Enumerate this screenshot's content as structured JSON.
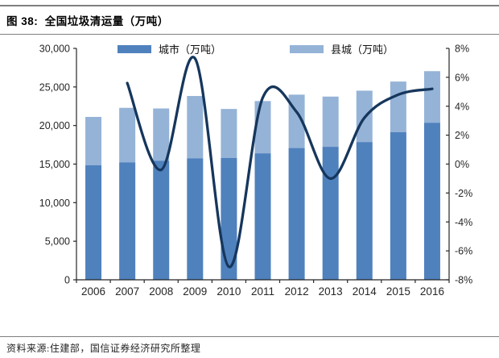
{
  "header": {
    "title": "图 38:  全国垃圾清运量（万吨）"
  },
  "footer": {
    "source": "资料来源:住建部，国信证券经济研究所整理"
  },
  "colors": {
    "city_bar": "#4F81BD",
    "county_bar": "#95B3D7",
    "growth_line": "#16365C",
    "axis": "#262626",
    "tick_text": "#262626",
    "rule": "#7F7F7F"
  },
  "chart_data": {
    "type": "bar",
    "subtype": "stacked column + smoothed line on secondary axis",
    "title": "全国垃圾清运量（万吨）",
    "categories": [
      "2006",
      "2007",
      "2008",
      "2009",
      "2010",
      "2011",
      "2012",
      "2013",
      "2014",
      "2015",
      "2016"
    ],
    "series": [
      {
        "name": "城市（万吨）",
        "type": "bar",
        "axis": "left",
        "color": "#4F81BD",
        "values": [
          14841,
          15215,
          15438,
          15734,
          15805,
          16395,
          17081,
          17239,
          17860,
          19142,
          20362
        ]
      },
      {
        "name": "县城（万吨）",
        "type": "bar",
        "axis": "left",
        "color": "#95B3D7",
        "values": [
          6274,
          7077,
          6772,
          8094,
          6343,
          6777,
          6922,
          6512,
          6656,
          6558,
          6685
        ]
      },
      {
        "name": "",
        "note": "unlabeled smoothed growth line, right axis, % YoY",
        "type": "line",
        "axis": "right",
        "color": "#16365C",
        "values_pct": [
          null,
          5.6,
          -0.4,
          7.3,
          -7.1,
          4.6,
          3.6,
          -1.0,
          3.2,
          4.8,
          5.2
        ]
      }
    ],
    "left_axis": {
      "min": 0,
      "max": 30000,
      "step": 5000,
      "tick_labels": [
        "0",
        "5,000",
        "10,000",
        "15,000",
        "20,000",
        "25,000",
        "30,000"
      ]
    },
    "right_axis": {
      "min": -8,
      "max": 8,
      "step": 2,
      "tick_labels": [
        "-8%",
        "-6%",
        "-4%",
        "-2%",
        "0%",
        "2%",
        "4%",
        "6%",
        "8%"
      ]
    },
    "legend": {
      "position": "top",
      "entries": [
        "城市（万吨）",
        "县城（万吨）"
      ]
    },
    "grid": false
  }
}
